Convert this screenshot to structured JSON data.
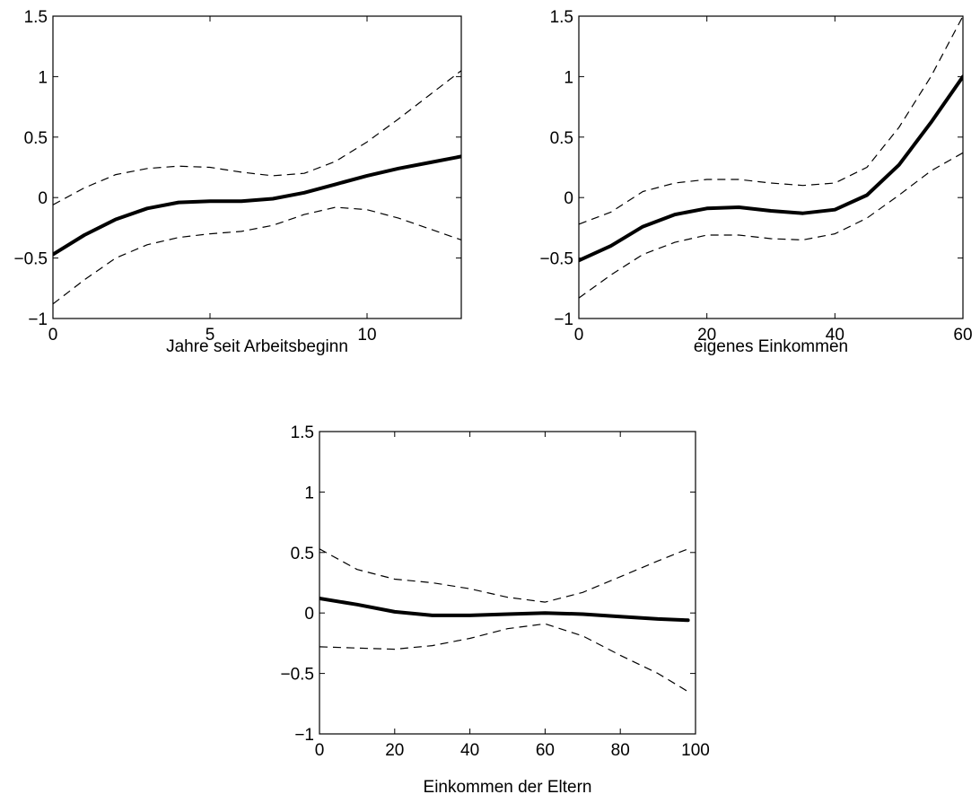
{
  "chart_data": [
    {
      "type": "line",
      "xlabel": "Jahre seit Arbeitsbeginn",
      "ylabel": "",
      "title": "",
      "xlim": [
        0,
        13
      ],
      "ylim": [
        -1,
        1.5
      ],
      "xticks": [
        0,
        5,
        10
      ],
      "yticks": [
        -1,
        -0.5,
        0,
        0.5,
        1,
        1.5
      ],
      "grid": false,
      "series": [
        {
          "style": "solid",
          "x": [
            0,
            1,
            2,
            3,
            4,
            5,
            6,
            7,
            8,
            9,
            10,
            11,
            12,
            13
          ],
          "y": [
            -0.47,
            -0.31,
            -0.18,
            -0.09,
            -0.04,
            -0.03,
            -0.03,
            -0.01,
            0.04,
            0.11,
            0.18,
            0.24,
            0.29,
            0.34
          ]
        },
        {
          "style": "dashed",
          "x": [
            0,
            1,
            2,
            3,
            4,
            5,
            6,
            7,
            8,
            9,
            10,
            11,
            12,
            13
          ],
          "y": [
            -0.06,
            0.08,
            0.19,
            0.24,
            0.26,
            0.25,
            0.21,
            0.18,
            0.2,
            0.3,
            0.46,
            0.65,
            0.85,
            1.05
          ]
        },
        {
          "style": "dashed",
          "x": [
            0,
            1,
            2,
            3,
            4,
            5,
            6,
            7,
            8,
            9,
            10,
            11,
            12,
            13
          ],
          "y": [
            -0.88,
            -0.68,
            -0.5,
            -0.39,
            -0.33,
            -0.3,
            -0.28,
            -0.23,
            -0.14,
            -0.08,
            -0.1,
            -0.17,
            -0.26,
            -0.35
          ]
        }
      ]
    },
    {
      "type": "line",
      "xlabel": "eigenes Einkommen",
      "ylabel": "",
      "title": "",
      "xlim": [
        0,
        60
      ],
      "ylim": [
        -1,
        1.5
      ],
      "xticks": [
        0,
        20,
        40,
        60
      ],
      "yticks": [
        -1,
        -0.5,
        0,
        0.5,
        1,
        1.5
      ],
      "grid": false,
      "series": [
        {
          "style": "solid",
          "x": [
            0,
            5,
            10,
            15,
            20,
            25,
            30,
            35,
            40,
            45,
            50,
            55,
            60
          ],
          "y": [
            -0.52,
            -0.4,
            -0.24,
            -0.14,
            -0.09,
            -0.08,
            -0.11,
            -0.13,
            -0.1,
            0.02,
            0.27,
            0.62,
            1.0
          ]
        },
        {
          "style": "dashed",
          "x": [
            0,
            5,
            10,
            15,
            20,
            25,
            30,
            35,
            40,
            45,
            50,
            55,
            60
          ],
          "y": [
            -0.22,
            -0.12,
            0.05,
            0.12,
            0.15,
            0.15,
            0.12,
            0.1,
            0.12,
            0.25,
            0.58,
            1.0,
            1.5
          ]
        },
        {
          "style": "dashed",
          "x": [
            0,
            5,
            10,
            15,
            20,
            25,
            30,
            35,
            40,
            45,
            50,
            55,
            60
          ],
          "y": [
            -0.83,
            -0.64,
            -0.47,
            -0.37,
            -0.31,
            -0.31,
            -0.34,
            -0.35,
            -0.3,
            -0.17,
            0.02,
            0.22,
            0.37
          ]
        }
      ]
    },
    {
      "type": "line",
      "xlabel": "Einkommen der Eltern",
      "ylabel": "",
      "title": "",
      "xlim": [
        0,
        100
      ],
      "ylim": [
        -1,
        1.5
      ],
      "xticks": [
        0,
        20,
        40,
        60,
        80,
        100
      ],
      "yticks": [
        -1,
        -0.5,
        0,
        0.5,
        1,
        1.5
      ],
      "grid": false,
      "series": [
        {
          "style": "solid",
          "x": [
            0,
            10,
            20,
            30,
            40,
            50,
            60,
            70,
            80,
            90,
            98
          ],
          "y": [
            0.12,
            0.07,
            0.01,
            -0.02,
            -0.02,
            -0.01,
            0.0,
            -0.01,
            -0.03,
            -0.05,
            -0.06
          ]
        },
        {
          "style": "dashed",
          "x": [
            0,
            10,
            20,
            30,
            40,
            50,
            60,
            70,
            80,
            90,
            98
          ],
          "y": [
            0.53,
            0.36,
            0.28,
            0.25,
            0.2,
            0.13,
            0.09,
            0.17,
            0.3,
            0.43,
            0.53
          ]
        },
        {
          "style": "dashed",
          "x": [
            0,
            10,
            20,
            30,
            40,
            50,
            60,
            70,
            80,
            90,
            98
          ],
          "y": [
            -0.28,
            -0.29,
            -0.3,
            -0.27,
            -0.21,
            -0.13,
            -0.09,
            -0.19,
            -0.35,
            -0.5,
            -0.65
          ]
        }
      ]
    }
  ]
}
